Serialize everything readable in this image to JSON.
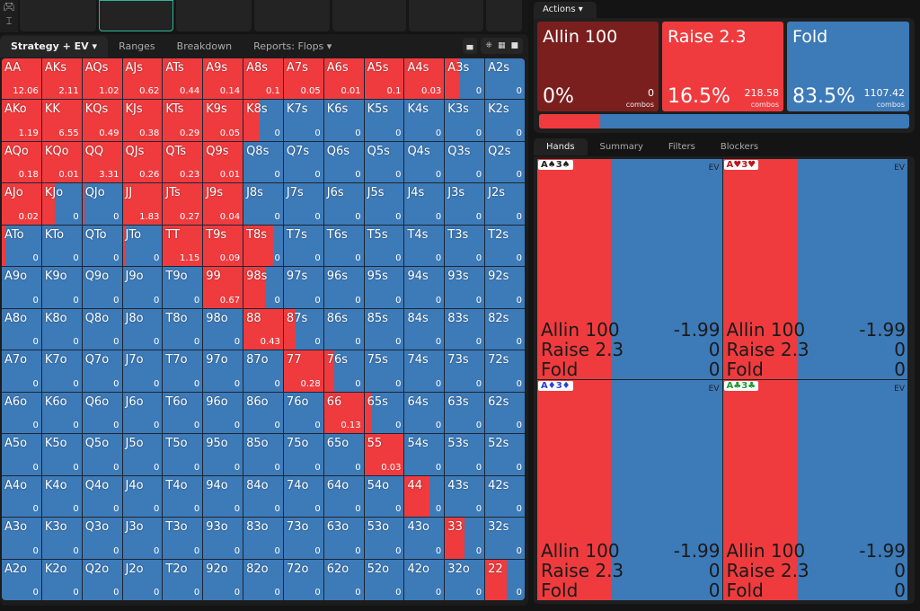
{
  "toolbar": {
    "icons": [
      "gamepad-icon",
      "text-cursor-icon"
    ]
  },
  "left_tabs": {
    "strategy": "Strategy + EV",
    "ranges": "Ranges",
    "breakdown": "Breakdown",
    "reports": "Reports: Flops"
  },
  "colors": {
    "raise": "#ef3b3e",
    "fold": "#3d7ab8",
    "allin": "#7a1e1e"
  },
  "matrix": [
    [
      [
        "AA",
        "12.06",
        1
      ],
      [
        "AKs",
        "2.11",
        1
      ],
      [
        "AQs",
        "1.02",
        1
      ],
      [
        "AJs",
        "0.62",
        1
      ],
      [
        "ATs",
        "0.44",
        1
      ],
      [
        "A9s",
        "0.14",
        1
      ],
      [
        "A8s",
        "0.1",
        1
      ],
      [
        "A7s",
        "0.05",
        1
      ],
      [
        "A6s",
        "0.01",
        1
      ],
      [
        "A5s",
        "0.1",
        1
      ],
      [
        "A4s",
        "0.03",
        1
      ],
      [
        "A3s",
        "0",
        0.37
      ],
      [
        "A2s",
        "0",
        0
      ]
    ],
    [
      [
        "AKo",
        "1.19",
        1
      ],
      [
        "KK",
        "6.55",
        1
      ],
      [
        "KQs",
        "0.49",
        1
      ],
      [
        "KJs",
        "0.38",
        1
      ],
      [
        "KTs",
        "0.29",
        1
      ],
      [
        "K9s",
        "0.05",
        1
      ],
      [
        "K8s",
        "0",
        0.42
      ],
      [
        "K7s",
        "0",
        0
      ],
      [
        "K6s",
        "0",
        0
      ],
      [
        "K5s",
        "0",
        0
      ],
      [
        "K4s",
        "0",
        0
      ],
      [
        "K3s",
        "0",
        0
      ],
      [
        "K2s",
        "0",
        0
      ]
    ],
    [
      [
        "AQo",
        "0.18",
        1
      ],
      [
        "KQo",
        "0.01",
        1
      ],
      [
        "QQ",
        "3.31",
        1
      ],
      [
        "QJs",
        "0.26",
        1
      ],
      [
        "QTs",
        "0.23",
        1
      ],
      [
        "Q9s",
        "0.01",
        1
      ],
      [
        "Q8s",
        "0",
        0
      ],
      [
        "Q7s",
        "0",
        0
      ],
      [
        "Q6s",
        "0",
        0
      ],
      [
        "Q5s",
        "0",
        0
      ],
      [
        "Q4s",
        "0",
        0
      ],
      [
        "Q3s",
        "0",
        0
      ],
      [
        "Q2s",
        "0",
        0
      ]
    ],
    [
      [
        "AJo",
        "0.02",
        1
      ],
      [
        "KJo",
        "0",
        0.33
      ],
      [
        "QJo",
        "0",
        0.06
      ],
      [
        "JJ",
        "1.83",
        1
      ],
      [
        "JTs",
        "0.27",
        1
      ],
      [
        "J9s",
        "0.04",
        1
      ],
      [
        "J8s",
        "0",
        0
      ],
      [
        "J7s",
        "0",
        0
      ],
      [
        "J6s",
        "0",
        0
      ],
      [
        "J5s",
        "0",
        0
      ],
      [
        "J4s",
        "0",
        0
      ],
      [
        "J3s",
        "0",
        0
      ],
      [
        "J2s",
        "0",
        0
      ]
    ],
    [
      [
        "ATo",
        "0",
        0.1
      ],
      [
        "KTo",
        "0",
        0
      ],
      [
        "QTo",
        "0",
        0
      ],
      [
        "JTo",
        "0",
        0.05
      ],
      [
        "TT",
        "1.15",
        1
      ],
      [
        "T9s",
        "0.09",
        1
      ],
      [
        "T8s",
        "0",
        0.78
      ],
      [
        "T7s",
        "0",
        0
      ],
      [
        "T6s",
        "0",
        0
      ],
      [
        "T5s",
        "0",
        0
      ],
      [
        "T4s",
        "0",
        0
      ],
      [
        "T3s",
        "0",
        0
      ],
      [
        "T2s",
        "0",
        0
      ]
    ],
    [
      [
        "A9o",
        "0",
        0
      ],
      [
        "K9o",
        "0",
        0
      ],
      [
        "Q9o",
        "0",
        0
      ],
      [
        "J9o",
        "0",
        0
      ],
      [
        "T9o",
        "0",
        0
      ],
      [
        "99",
        "0.67",
        1
      ],
      [
        "98s",
        "0",
        0.55
      ],
      [
        "97s",
        "0",
        0
      ],
      [
        "96s",
        "0",
        0
      ],
      [
        "95s",
        "0",
        0
      ],
      [
        "94s",
        "0",
        0
      ],
      [
        "93s",
        "0",
        0
      ],
      [
        "92s",
        "0",
        0
      ]
    ],
    [
      [
        "A8o",
        "0",
        0
      ],
      [
        "K8o",
        "0",
        0
      ],
      [
        "Q8o",
        "0",
        0
      ],
      [
        "J8o",
        "0",
        0
      ],
      [
        "T8o",
        "0",
        0
      ],
      [
        "98o",
        "0",
        0
      ],
      [
        "88",
        "0.43",
        1
      ],
      [
        "87s",
        "0",
        0.3
      ],
      [
        "86s",
        "0",
        0
      ],
      [
        "85s",
        "0",
        0
      ],
      [
        "84s",
        "0",
        0
      ],
      [
        "83s",
        "0",
        0
      ],
      [
        "82s",
        "0",
        0
      ]
    ],
    [
      [
        "A7o",
        "0",
        0
      ],
      [
        "K7o",
        "0",
        0
      ],
      [
        "Q7o",
        "0",
        0
      ],
      [
        "J7o",
        "0",
        0
      ],
      [
        "T7o",
        "0",
        0
      ],
      [
        "97o",
        "0",
        0
      ],
      [
        "87o",
        "0",
        0
      ],
      [
        "77",
        "0.28",
        1
      ],
      [
        "76s",
        "0",
        0.25
      ],
      [
        "75s",
        "0",
        0
      ],
      [
        "74s",
        "0",
        0
      ],
      [
        "73s",
        "0",
        0
      ],
      [
        "72s",
        "0",
        0
      ]
    ],
    [
      [
        "A6o",
        "0",
        0
      ],
      [
        "K6o",
        "0",
        0
      ],
      [
        "Q6o",
        "0",
        0
      ],
      [
        "J6o",
        "0",
        0
      ],
      [
        "T6o",
        "0",
        0
      ],
      [
        "96o",
        "0",
        0
      ],
      [
        "86o",
        "0",
        0
      ],
      [
        "76o",
        "0",
        0
      ],
      [
        "66",
        "0.13",
        1
      ],
      [
        "65s",
        "0",
        0.2
      ],
      [
        "64s",
        "0",
        0
      ],
      [
        "63s",
        "0",
        0
      ],
      [
        "62s",
        "0",
        0
      ]
    ],
    [
      [
        "A5o",
        "0",
        0
      ],
      [
        "K5o",
        "0",
        0
      ],
      [
        "Q5o",
        "0",
        0
      ],
      [
        "J5o",
        "0",
        0
      ],
      [
        "T5o",
        "0",
        0
      ],
      [
        "95o",
        "0",
        0
      ],
      [
        "85o",
        "0",
        0
      ],
      [
        "75o",
        "0",
        0
      ],
      [
        "65o",
        "0",
        0
      ],
      [
        "55",
        "0.03",
        1
      ],
      [
        "54s",
        "0",
        0
      ],
      [
        "53s",
        "0",
        0
      ],
      [
        "52s",
        "0",
        0
      ]
    ],
    [
      [
        "A4o",
        "0",
        0
      ],
      [
        "K4o",
        "0",
        0
      ],
      [
        "Q4o",
        "0",
        0
      ],
      [
        "J4o",
        "0",
        0
      ],
      [
        "T4o",
        "0",
        0
      ],
      [
        "94o",
        "0",
        0
      ],
      [
        "84o",
        "0",
        0
      ],
      [
        "74o",
        "0",
        0
      ],
      [
        "64o",
        "0",
        0
      ],
      [
        "54o",
        "0",
        0
      ],
      [
        "44",
        "0",
        0.62
      ],
      [
        "43s",
        "0",
        0
      ],
      [
        "42s",
        "0",
        0
      ]
    ],
    [
      [
        "A3o",
        "0",
        0
      ],
      [
        "K3o",
        "0",
        0
      ],
      [
        "Q3o",
        "0",
        0
      ],
      [
        "J3o",
        "0",
        0
      ],
      [
        "T3o",
        "0",
        0
      ],
      [
        "93o",
        "0",
        0
      ],
      [
        "83o",
        "0",
        0
      ],
      [
        "73o",
        "0",
        0
      ],
      [
        "63o",
        "0",
        0
      ],
      [
        "53o",
        "0",
        0
      ],
      [
        "43o",
        "0",
        0
      ],
      [
        "33",
        "0",
        0.49
      ],
      [
        "32s",
        "0",
        0
      ]
    ],
    [
      [
        "A2o",
        "0",
        0
      ],
      [
        "K2o",
        "0",
        0
      ],
      [
        "Q2o",
        "0",
        0
      ],
      [
        "J2o",
        "0",
        0
      ],
      [
        "T2o",
        "0",
        0
      ],
      [
        "92o",
        "0",
        0
      ],
      [
        "82o",
        "0",
        0
      ],
      [
        "72o",
        "0",
        0
      ],
      [
        "62o",
        "0",
        0
      ],
      [
        "52o",
        "0",
        0
      ],
      [
        "42o",
        "0",
        0
      ],
      [
        "32o",
        "0",
        0
      ],
      [
        "22",
        "0",
        0.55
      ]
    ]
  ],
  "actions": {
    "tab": "Actions",
    "items": [
      {
        "name": "Allin 100",
        "pct": "0%",
        "combos": "0",
        "combos_label": "combos"
      },
      {
        "name": "Raise 2.3",
        "pct": "16.5%",
        "combos": "218.58",
        "combos_label": "combos"
      },
      {
        "name": "Fold",
        "pct": "83.5%",
        "combos": "1107.42",
        "combos_label": "combos"
      }
    ],
    "bar_raise_fraction": 0.165
  },
  "hand_tabs": [
    "Hands",
    "Summary",
    "Filters",
    "Blockers"
  ],
  "hands": [
    {
      "label": "A♠3♠",
      "color": "#222222",
      "ev_label": "EV",
      "raise_fraction": 0.4,
      "rows": [
        [
          "Allin 100",
          "-1.99"
        ],
        [
          "Raise 2.3",
          "0"
        ],
        [
          "Fold",
          "0"
        ]
      ]
    },
    {
      "label": "A♥3♥",
      "color": "#c0141a",
      "ev_label": "EV",
      "raise_fraction": 0.4,
      "rows": [
        [
          "Allin 100",
          "-1.99"
        ],
        [
          "Raise 2.3",
          "0"
        ],
        [
          "Fold",
          "0"
        ]
      ]
    },
    {
      "label": "A♦3♦",
      "color": "#2a3fd0",
      "ev_label": "EV",
      "raise_fraction": 0.4,
      "rows": [
        [
          "Allin 100",
          "-1.99"
        ],
        [
          "Raise 2.3",
          "0"
        ],
        [
          "Fold",
          "0"
        ]
      ]
    },
    {
      "label": "A♣3♣",
      "color": "#1e9a2e",
      "ev_label": "EV",
      "raise_fraction": 0.4,
      "rows": [
        [
          "Allin 100",
          "-1.99"
        ],
        [
          "Raise 2.3",
          "0"
        ],
        [
          "Fold",
          "0"
        ]
      ]
    }
  ]
}
